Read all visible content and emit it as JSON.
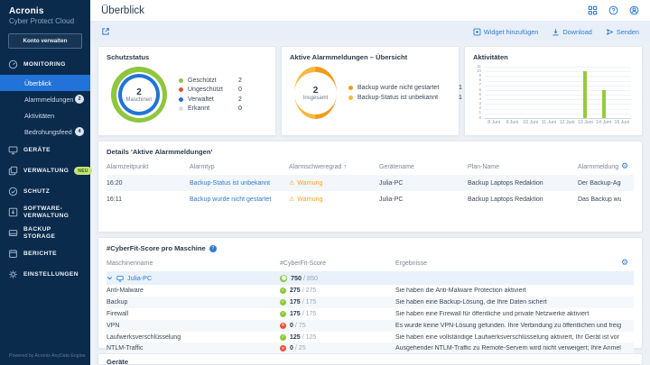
{
  "colors": {
    "accent_blue": "#2b7cd3",
    "sidebar_bg": "#0b2b4c",
    "selected_blue": "#2173d9",
    "green": "#8fc63f",
    "orange": "#f39a18",
    "orange_light": "#fbb742",
    "red": "#e5503c",
    "bar_green": "#97ca3e"
  },
  "sidebar": {
    "logo": {
      "line1": "Acronis",
      "line2": "Cyber Protect Cloud"
    },
    "manage_account_button": "Konto verwalten",
    "sections": [
      {
        "label": "MONITORING"
      },
      {
        "label": "GERÄTE"
      },
      {
        "label": "VERWALTUNG",
        "badge": "NEU"
      },
      {
        "label": "SCHUTZ"
      },
      {
        "label": "SOFTWARE-VERWALTUNG"
      },
      {
        "label": "BACKUP STORAGE"
      },
      {
        "label": "BERICHTE"
      },
      {
        "label": "EINSTELLUNGEN"
      }
    ],
    "monitoring_items": [
      {
        "label": "Überblick"
      },
      {
        "label": "Alarmmeldungen",
        "badge": "2"
      },
      {
        "label": "Aktivitäten"
      },
      {
        "label": "Bedrohungsfeed",
        "badge": "4"
      }
    ],
    "footer": "Powered by Acronis AnyData Engine"
  },
  "topbar": {
    "title": "Überblick"
  },
  "actionbar": {
    "add_widget": "Widget hinzufügen",
    "download": "Download",
    "send": "Senden"
  },
  "widgets": {
    "protection_status": {
      "title": "Schutzstatus",
      "center_value": "2",
      "center_label": "Maschinen",
      "legend": [
        {
          "label": "Geschützt",
          "value": "2",
          "color": "#8fc63f"
        },
        {
          "label": "Ungeschützt",
          "value": "0",
          "color": "#e5503c"
        },
        {
          "label": "Verwaltet",
          "value": "2",
          "color": "#2173d9"
        },
        {
          "label": "Erkannt",
          "value": "0",
          "color": "#d9e0e8"
        }
      ]
    },
    "active_alerts_overview": {
      "title": "Aktive Alarmmeldungen – Übersicht",
      "center_value": "2",
      "center_label": "Insgesamt",
      "legend": [
        {
          "label": "Backup wurde nicht gestartet",
          "value": "1",
          "color": "#f39a18"
        },
        {
          "label": "Backup-Status ist unbekannt",
          "value": "1",
          "color": "#fbb742"
        }
      ]
    },
    "activities": {
      "title": "Aktivitäten"
    }
  },
  "chart_data": {
    "type": "bar",
    "title": "Aktivitäten",
    "categories": [
      "8 Juni",
      "9 Juni",
      "10 Juni",
      "11 Juni",
      "12 Juni",
      "13 Juni",
      "14 Juni",
      "15 Juni"
    ],
    "values": [
      0,
      0,
      0,
      0,
      0,
      10,
      6,
      0
    ],
    "xlabel": "",
    "ylabel": "",
    "ylim": [
      0,
      11
    ],
    "yticks": [
      0,
      1,
      2,
      3,
      4,
      5,
      6,
      7,
      8,
      9,
      10,
      11
    ],
    "grid": true,
    "legend": "none",
    "bar_color": "#97ca3e"
  },
  "alerts_table": {
    "title": "Details 'Aktive Alarmmeldungen'",
    "columns": [
      "Alarmzeitpunkt",
      "Alarmtyp",
      "Alarmschweregrad",
      "Gerätename",
      "Plan-Name",
      "Alarmmeldung"
    ],
    "rows": [
      {
        "time": "16:20",
        "type": "Backup-Status ist unbekannt",
        "severity": "Warnung",
        "device": "Julia-PC",
        "plan": "Backup Laptops Redaktion",
        "message": "Der Backup-Agent war zu einer gepl..."
      },
      {
        "time": "16:11",
        "type": "Backup wurde nicht gestartet",
        "severity": "Warnung",
        "device": "Julia-PC",
        "plan": "Backup Laptops Redaktion",
        "message": "Das Backup wurde nicht wie geplan..."
      }
    ]
  },
  "cyberfit": {
    "title": "#CyberFit-Score pro Maschine",
    "columns": [
      "Maschinenname",
      "#CyberFit-Score",
      "Ergebnisse"
    ],
    "machine": {
      "name": "Julia-PC",
      "score": "750",
      "max": "/ 850"
    },
    "rows": [
      {
        "name": "Anti-Malware",
        "score": "275",
        "max": "/ 275",
        "status": "pass",
        "result": "Sie haben die Anti-Malware Protection aktiviert"
      },
      {
        "name": "Backup",
        "score": "175",
        "max": "/ 175",
        "status": "pass",
        "result": "Sie haben eine Backup-Lösung, die Ihre Daten sichert"
      },
      {
        "name": "Firewall",
        "score": "175",
        "max": "/ 175",
        "status": "pass",
        "result": "Sie haben eine Firewall für öffentliche und private Netzwerke aktiviert"
      },
      {
        "name": "VPN",
        "score": "0",
        "max": "/ 75",
        "status": "fail",
        "result": "Es wurde keine VPN-Lösung gefunden. Ihre Verbindung zu öffentlichen und freigegebenen Netzwerken ist nicht sicher!"
      },
      {
        "name": "Laufwerksverschlüsselung",
        "score": "125",
        "max": "/ 125",
        "status": "pass",
        "result": "Sie haben eine vollständige Laufwerksverschlüsselung aktiviert, Ihr Gerät ist vor physischen Manipulationen geschützt"
      },
      {
        "name": "NTLM-Traffic",
        "score": "0",
        "max": "/ 25",
        "status": "fail",
        "result": "Ausgehender NTLM-Traffic zu Remote-Servern wird nicht verweigert; Ihre Anmeldedaten sind für eine Offenlegung anfällig"
      }
    ]
  },
  "devices_widget": {
    "title": "Geräte"
  }
}
